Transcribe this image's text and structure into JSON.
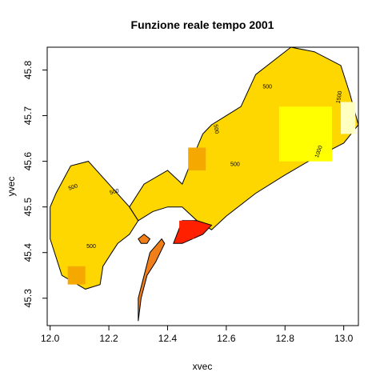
{
  "chart_data": {
    "type": "heatmap",
    "title": "Funzione reale tempo 2001",
    "xlabel": "xvec",
    "ylabel": "yvec",
    "xlim": [
      11.99,
      13.05
    ],
    "ylim": [
      45.24,
      45.85
    ],
    "x_ticks": [
      12.0,
      12.2,
      12.4,
      12.6,
      12.8,
      13.0
    ],
    "x_tick_labels": [
      "12.0",
      "12.2",
      "12.4",
      "12.6",
      "12.8",
      "13.0"
    ],
    "y_ticks": [
      45.3,
      45.4,
      45.5,
      45.6,
      45.7,
      45.8
    ],
    "y_tick_labels": [
      "45.3",
      "45.4",
      "45.5",
      "45.6",
      "45.7",
      "45.8"
    ],
    "grid": false,
    "legend": "none",
    "colors": {
      "low": "#ff2000",
      "orange": "#f07f1a",
      "amber": "#f5a800",
      "gold": "#ffd400",
      "yellow": "#ffff00",
      "pale": "#ffffc0",
      "land_default": "#ffd700",
      "contour_line": "#000000"
    },
    "contour_levels": [
      {
        "label": "500",
        "x": 12.08,
        "y": 45.54,
        "angle": -20
      },
      {
        "label": "500",
        "x": 12.22,
        "y": 45.53,
        "angle": -15
      },
      {
        "label": "500",
        "x": 12.14,
        "y": 45.41,
        "angle": 0
      },
      {
        "label": "500",
        "x": 12.63,
        "y": 45.59,
        "angle": 0
      },
      {
        "label": "500",
        "x": 12.74,
        "y": 45.76,
        "angle": 0
      },
      {
        "label": "500",
        "x": 12.56,
        "y": 45.67,
        "angle": 80
      },
      {
        "label": "1000",
        "x": 12.92,
        "y": 45.62,
        "angle": -70
      },
      {
        "label": "1500",
        "x": 12.99,
        "y": 45.74,
        "angle": -80
      }
    ],
    "regions": [
      {
        "name": "west-landmass",
        "fill": "#ffd700",
        "outline": [
          [
            12.0,
            45.5
          ],
          [
            12.02,
            45.53
          ],
          [
            12.07,
            45.59
          ],
          [
            12.13,
            45.6
          ],
          [
            12.2,
            45.55
          ],
          [
            12.27,
            45.5
          ],
          [
            12.3,
            45.47
          ],
          [
            12.27,
            45.44
          ],
          [
            12.25,
            45.43
          ],
          [
            12.23,
            45.42
          ],
          [
            12.21,
            45.4
          ],
          [
            12.18,
            45.37
          ],
          [
            12.17,
            45.33
          ],
          [
            12.12,
            45.32
          ],
          [
            12.04,
            45.35
          ],
          [
            12.0,
            45.43
          ]
        ]
      },
      {
        "name": "mainland-mid",
        "fill": "#ffd700",
        "outline": [
          [
            12.27,
            45.5
          ],
          [
            12.32,
            45.55
          ],
          [
            12.4,
            45.58
          ],
          [
            12.45,
            45.55
          ],
          [
            12.5,
            45.63
          ],
          [
            12.52,
            45.66
          ],
          [
            12.55,
            45.68
          ],
          [
            12.6,
            45.7
          ],
          [
            12.65,
            45.72
          ],
          [
            12.7,
            45.79
          ],
          [
            12.82,
            45.85
          ],
          [
            12.9,
            45.84
          ],
          [
            12.99,
            45.81
          ],
          [
            13.02,
            45.75
          ],
          [
            13.05,
            45.68
          ],
          [
            13.0,
            45.64
          ],
          [
            12.88,
            45.6
          ],
          [
            12.8,
            45.57
          ],
          [
            12.7,
            45.53
          ],
          [
            12.6,
            45.48
          ],
          [
            12.55,
            45.45
          ],
          [
            12.5,
            45.47
          ],
          [
            12.45,
            45.5
          ],
          [
            12.4,
            45.5
          ],
          [
            12.35,
            45.49
          ],
          [
            12.3,
            45.47
          ]
        ]
      },
      {
        "name": "lagoon-island",
        "fill": "#f07f1a",
        "outline": [
          [
            12.3,
            45.43
          ],
          [
            12.32,
            45.44
          ],
          [
            12.34,
            45.43
          ],
          [
            12.33,
            45.42
          ],
          [
            12.31,
            45.42
          ]
        ]
      },
      {
        "name": "barrier-island",
        "fill": "#f07f1a",
        "outline": [
          [
            12.34,
            45.4
          ],
          [
            12.38,
            45.43
          ],
          [
            12.39,
            45.42
          ],
          [
            12.36,
            45.38
          ],
          [
            12.33,
            45.35
          ],
          [
            12.31,
            45.3
          ],
          [
            12.3,
            45.25
          ],
          [
            12.3,
            45.3
          ],
          [
            12.32,
            45.35
          ]
        ]
      },
      {
        "name": "lido-strip",
        "fill": "#ff2000",
        "outline": [
          [
            12.42,
            45.42
          ],
          [
            12.45,
            45.47
          ],
          [
            12.5,
            45.47
          ],
          [
            12.55,
            45.46
          ],
          [
            12.52,
            45.44
          ],
          [
            12.45,
            45.42
          ]
        ]
      }
    ],
    "hotspots": [
      {
        "name": "west-orange-patch",
        "fill": "#f5a800",
        "x": 12.06,
        "y": 45.33,
        "w": 0.06,
        "h": 0.04
      },
      {
        "name": "mid-amber-patch",
        "fill": "#f5a800",
        "x": 12.47,
        "y": 45.58,
        "w": 0.06,
        "h": 0.05
      },
      {
        "name": "east-yellow-zone",
        "fill": "#ffff00",
        "x": 12.78,
        "y": 45.6,
        "w": 0.18,
        "h": 0.12
      },
      {
        "name": "far-east-pale",
        "fill": "#ffffc0",
        "x": 12.99,
        "y": 45.66,
        "w": 0.05,
        "h": 0.07
      },
      {
        "name": "lido-red-core",
        "fill": "#ff2000",
        "x": 12.44,
        "y": 45.43,
        "w": 0.05,
        "h": 0.04
      }
    ]
  }
}
